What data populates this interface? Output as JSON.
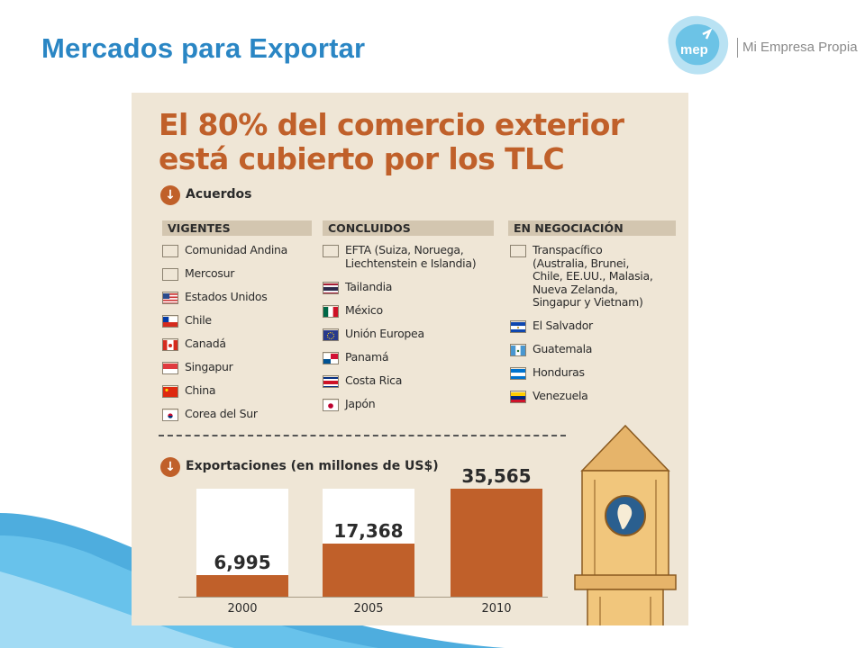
{
  "slide": {
    "title": "Mercados para Exportar",
    "logo_mark": "mep",
    "logo_text": "Mi Empresa Propia"
  },
  "infographic": {
    "headline_line1": "El 80% del comercio exterior",
    "headline_line2": "está cubierto por los TLC",
    "acuerdos_label": "Acuerdos",
    "columns": [
      {
        "header": "VIGENTES",
        "items": [
          {
            "label": "Comunidad Andina",
            "flag": "blank"
          },
          {
            "label": "Mercosur",
            "flag": "blank"
          },
          {
            "label": "Estados Unidos",
            "flag": "usa"
          },
          {
            "label": "Chile",
            "flag": "chile"
          },
          {
            "label": "Canadá",
            "flag": "canada"
          },
          {
            "label": "Singapur",
            "flag": "singapore"
          },
          {
            "label": "China",
            "flag": "china"
          },
          {
            "label": "Corea del Sur",
            "flag": "korea"
          }
        ]
      },
      {
        "header": "CONCLUIDOS",
        "items": [
          {
            "label": "EFTA (Suiza, Noruega,\nLiechtenstein e Islandia)",
            "flag": "blank"
          },
          {
            "label": "Tailandia",
            "flag": "thailand"
          },
          {
            "label": "México",
            "flag": "mexico"
          },
          {
            "label": "Unión Europea",
            "flag": "eu"
          },
          {
            "label": "Panamá",
            "flag": "panama"
          },
          {
            "label": "Costa Rica",
            "flag": "costarica"
          },
          {
            "label": "Japón",
            "flag": "japan"
          }
        ]
      },
      {
        "header": "EN NEGOCIACIÓN",
        "items": [
          {
            "label": "Transpacífico\n(Australia, Brunei,\nChile, EE.UU., Malasia,\nNueva Zelanda,\nSingapur y Vietnam)",
            "flag": "blank"
          },
          {
            "label": "El Salvador",
            "flag": "elsalvador"
          },
          {
            "label": "Guatemala",
            "flag": "guatemala"
          },
          {
            "label": "Honduras",
            "flag": "honduras"
          },
          {
            "label": "Venezuela",
            "flag": "venezuela"
          }
        ]
      }
    ],
    "exports_label": "Exportaciones (en millones de US$)"
  },
  "chart_data": {
    "type": "bar",
    "title": "Exportaciones (en millones de US$)",
    "categories": [
      "2000",
      "2005",
      "2010"
    ],
    "values": [
      6995,
      17368,
      35565
    ],
    "value_labels": [
      "6,995",
      "17,368",
      "35,565"
    ],
    "ylim": [
      0,
      35565
    ],
    "bar_color": "#c0602a"
  },
  "colors": {
    "title_blue": "#2a86c4",
    "accent_orange": "#c0602a",
    "panel_bg": "#efe6d6"
  }
}
